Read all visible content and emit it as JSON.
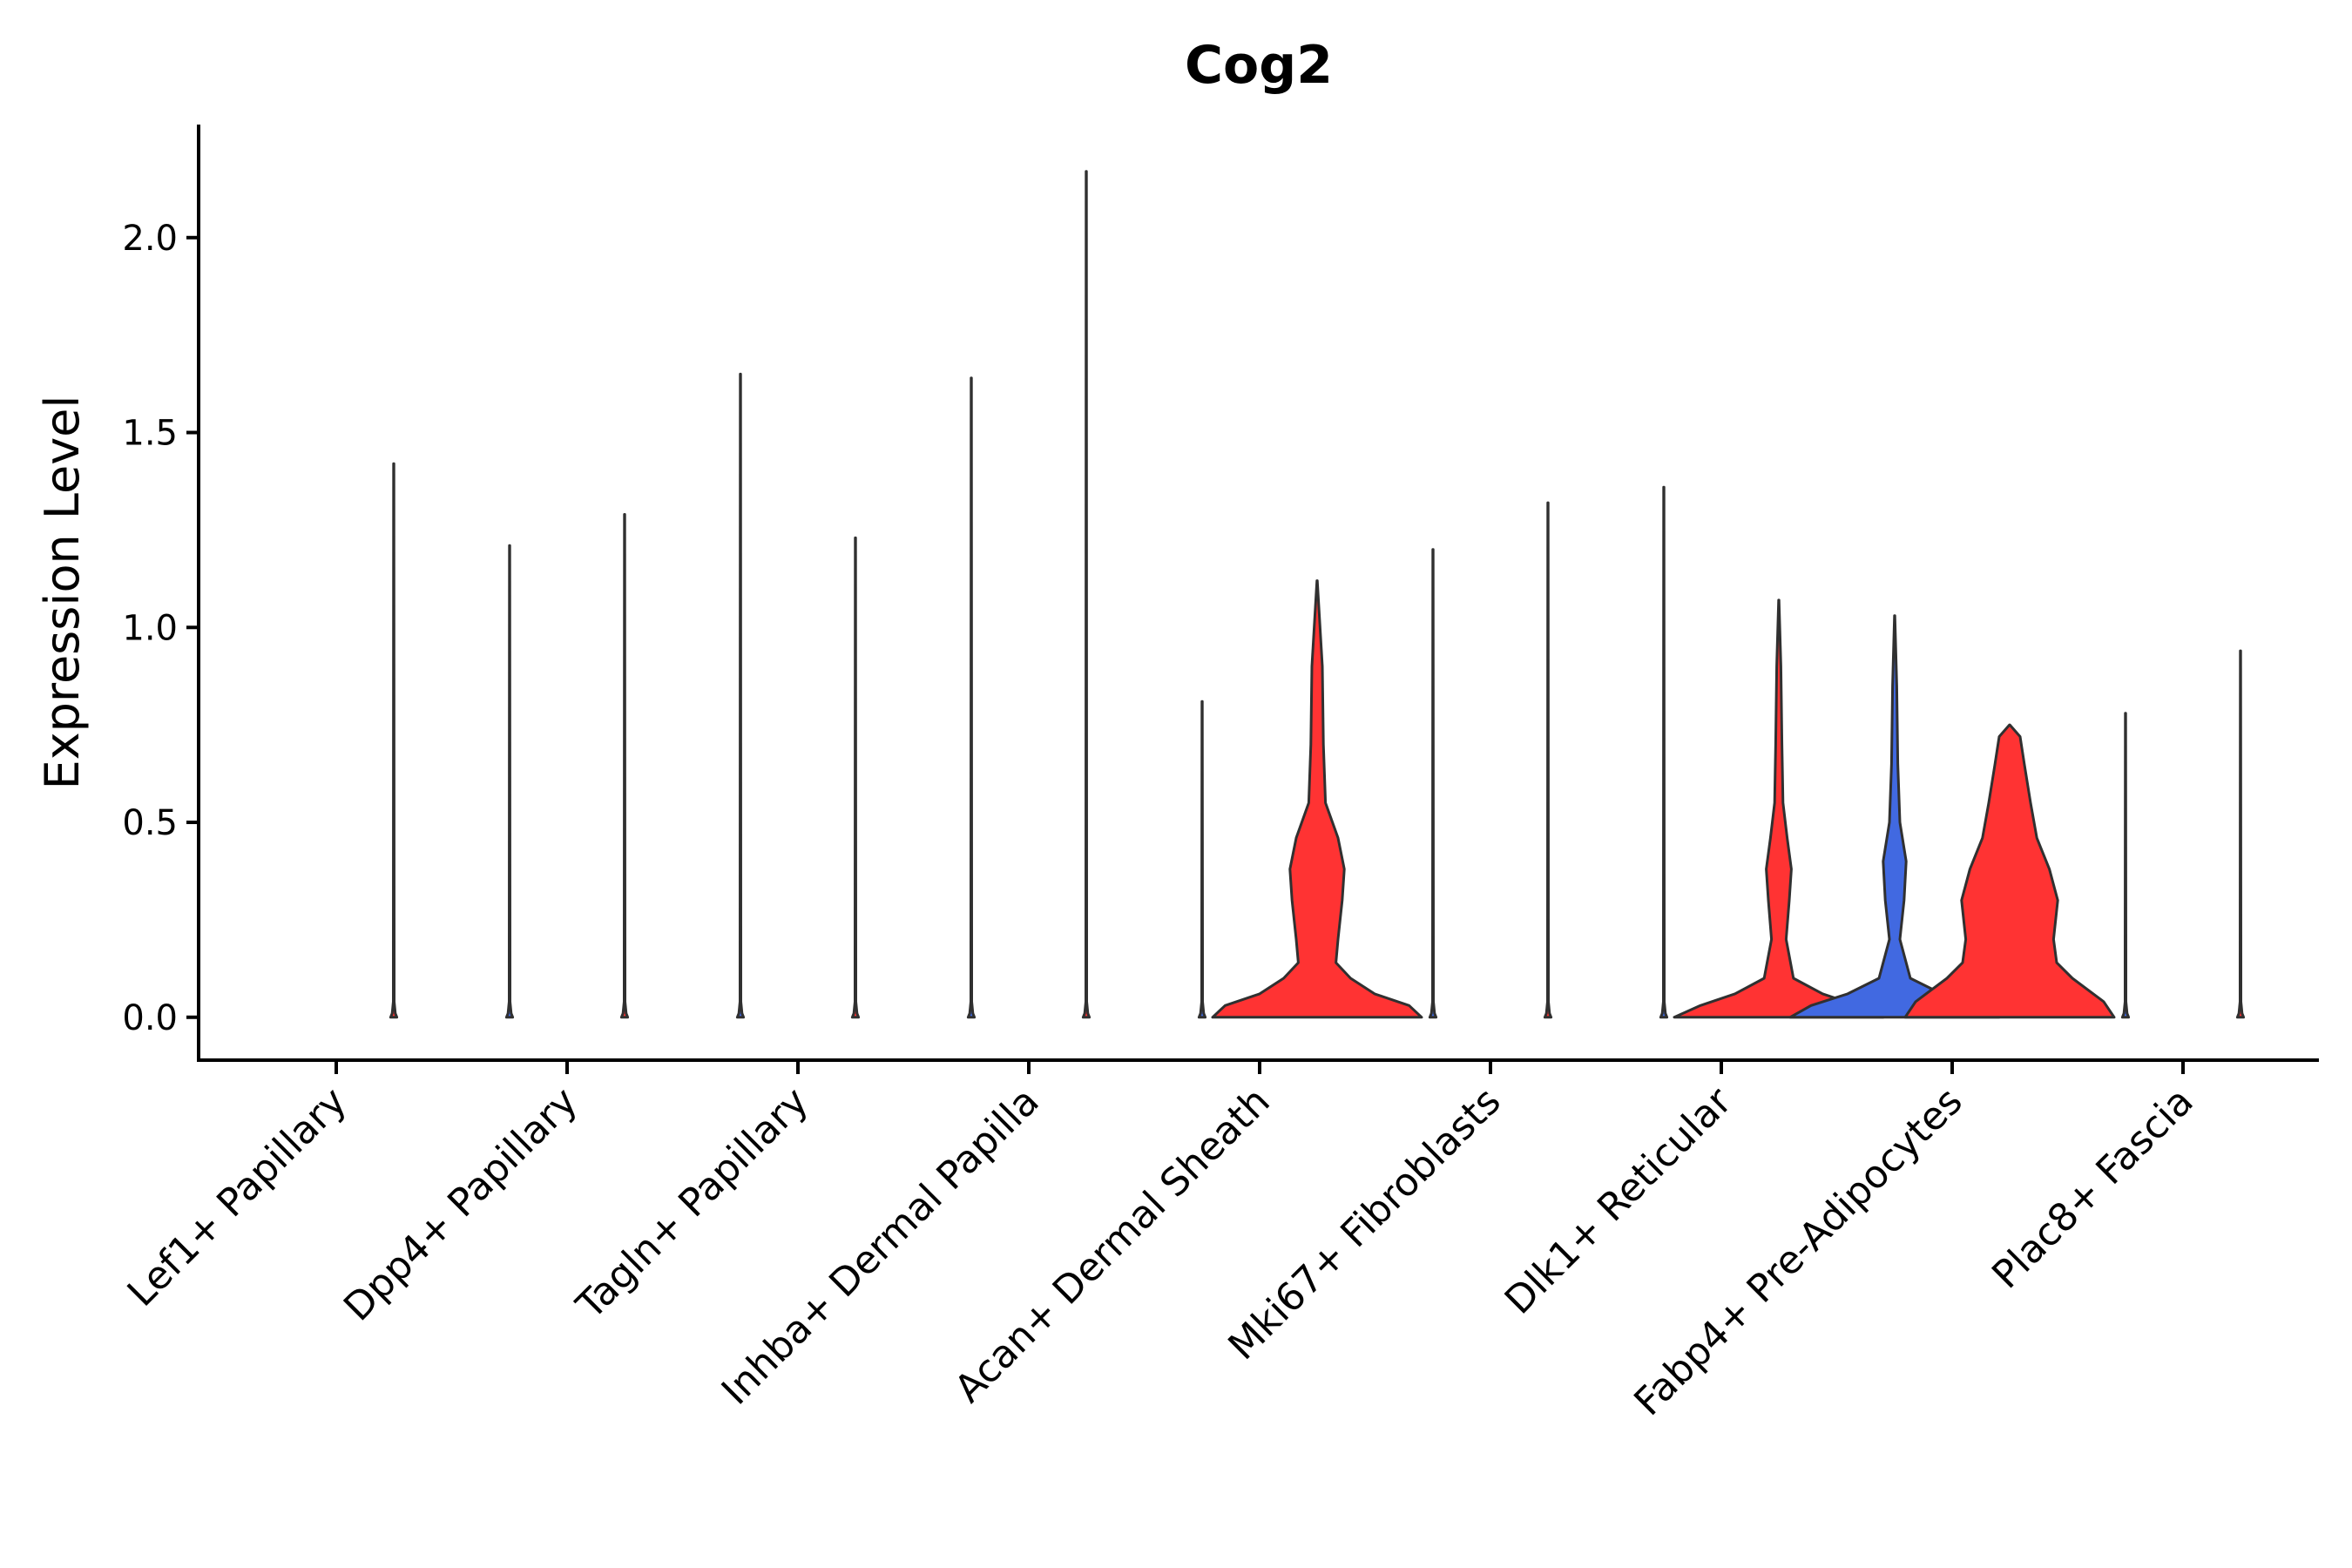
{
  "chart_data": {
    "type": "violin",
    "title": "Cog2",
    "xlabel": "",
    "ylabel": "Expression Level",
    "ylim": [
      -0.11,
      2.29
    ],
    "yticks": [
      0.0,
      0.5,
      1.0,
      1.5,
      2.0
    ],
    "ytick_labels": [
      "0.0",
      "0.5",
      "1.0",
      "1.5",
      "2.0"
    ],
    "categories": [
      "Lef1+ Papillary",
      "Dpp4+ Papillary",
      "Tagln+ Papillary",
      "Inhba+ Dermal Papilla",
      "Acan+ Dermal Sheath",
      "Mki67+ Fibroblasts",
      "Dlk1+ Reticular",
      "Fabp4+ Pre-Adipocytes",
      "Plac8+ Fascia"
    ],
    "series": [
      {
        "name": "red",
        "color": "#ff3333",
        "max_values": [
          1.42,
          1.29,
          1.23,
          2.17,
          1.12,
          1.32,
          1.07,
          0.75,
          0.94
        ]
      },
      {
        "name": "blue",
        "color": "#4169e1",
        "max_values": [
          0.0,
          1.21,
          1.65,
          1.64,
          0.81,
          1.2,
          1.36,
          1.03,
          0.78
        ]
      }
    ],
    "axis_colors": {
      "axis": "#000000",
      "outline": "#303030"
    }
  }
}
